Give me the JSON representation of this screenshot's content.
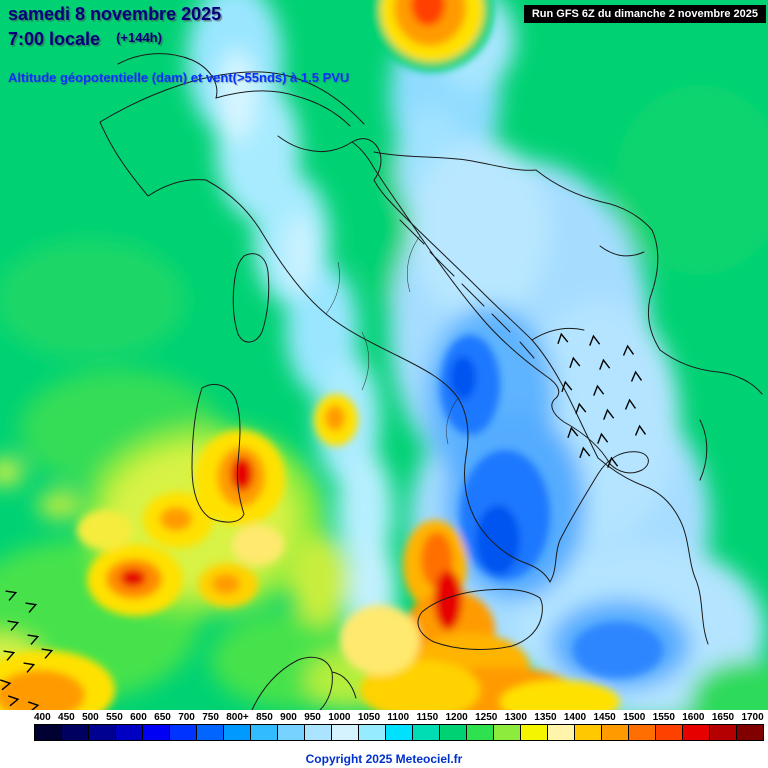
{
  "header": {
    "date_line": "samedi 8 novembre 2025",
    "time_line": "7:00 locale",
    "forecast_offset": "(+144h)",
    "variable_label": "Altitude géopotentielle (dam) et vent(>55nds) à 1.5 PVU",
    "run_info": "Run GFS 6Z du dimanche 2 novembre 2025"
  },
  "legend": {
    "values": [
      "400",
      "450",
      "500",
      "550",
      "600",
      "650",
      "700",
      "750",
      "800+",
      "850",
      "900",
      "950",
      "1000",
      "1050",
      "1100",
      "1150",
      "1200",
      "1250",
      "1300",
      "1350",
      "1400",
      "1450",
      "1500",
      "1550",
      "1600",
      "1650",
      "1700"
    ],
    "colors": [
      "#000032",
      "#000060",
      "#000091",
      "#0000c3",
      "#0000f5",
      "#0033ff",
      "#0066ff",
      "#0099ff",
      "#33bbff",
      "#77d2ff",
      "#aae4ff",
      "#d5f2ff",
      "#96ebff",
      "#00e1ff",
      "#00dcb4",
      "#00d273",
      "#2ee14e",
      "#8ceb3c",
      "#f5f500",
      "#fff5aa",
      "#ffc800",
      "#ff9b00",
      "#ff6e00",
      "#ff4100",
      "#e60000",
      "#b40000",
      "#800000"
    ]
  },
  "footer": {
    "copyright": "Copyright 2025 Meteociel.fr"
  },
  "colors": {
    "map_background_green": "#00d273",
    "header_navy": "#00007d",
    "variable_blue": "#0033ff",
    "run_box_bg": "#000000",
    "run_box_text": "#ffffff",
    "copyright_blue": "#0030cc"
  }
}
